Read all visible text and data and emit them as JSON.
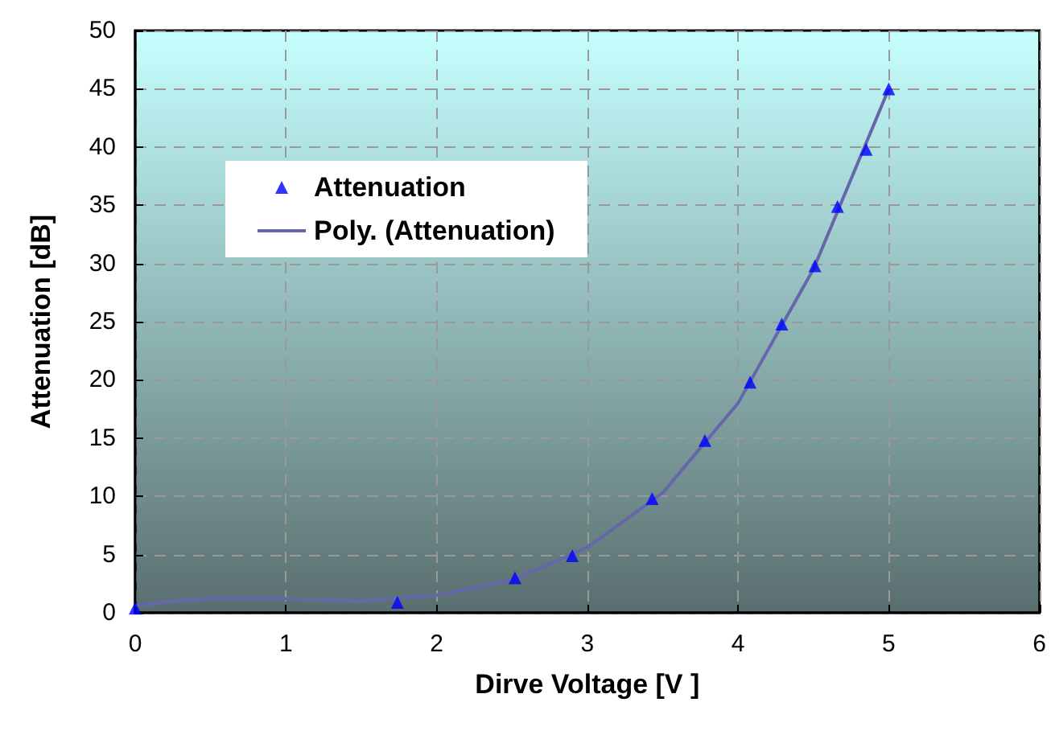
{
  "chart_data": {
    "type": "scatter",
    "xlabel": "Dirve Voltage [V ]",
    "ylabel": "Attenuation [dB]",
    "xlim": [
      0,
      6
    ],
    "xticks": [
      0,
      1,
      2,
      3,
      4,
      5,
      6
    ],
    "ylim": [
      0,
      50
    ],
    "yticks": [
      0,
      5,
      10,
      15,
      20,
      25,
      30,
      35,
      40,
      45,
      50
    ],
    "grid": true,
    "legend": "top left",
    "series": [
      {
        "name": "Attenuation",
        "marker": "triangle",
        "color": "#0000ff",
        "x": [
          0,
          1.74,
          2.52,
          2.9,
          3.43,
          3.78,
          4.08,
          4.29,
          4.51,
          4.66,
          4.85,
          5.0
        ],
        "values": [
          0.4,
          0.9,
          3,
          4.9,
          9.8,
          14.8,
          19.8,
          24.8,
          29.8,
          34.9,
          39.8,
          45
        ]
      },
      {
        "name": "Poly. (Attenuation)",
        "type": "line",
        "marker": "none",
        "color": "#6666aa",
        "x": [
          0,
          0.25,
          0.5,
          1,
          1.5,
          2,
          2.5,
          3,
          3.5,
          4,
          4.5,
          5
        ],
        "values": [
          0.6,
          1.0,
          1.2,
          1.2,
          1.0,
          1.5,
          2.8,
          5.6,
          10.3,
          18,
          29.5,
          45
        ]
      }
    ]
  }
}
